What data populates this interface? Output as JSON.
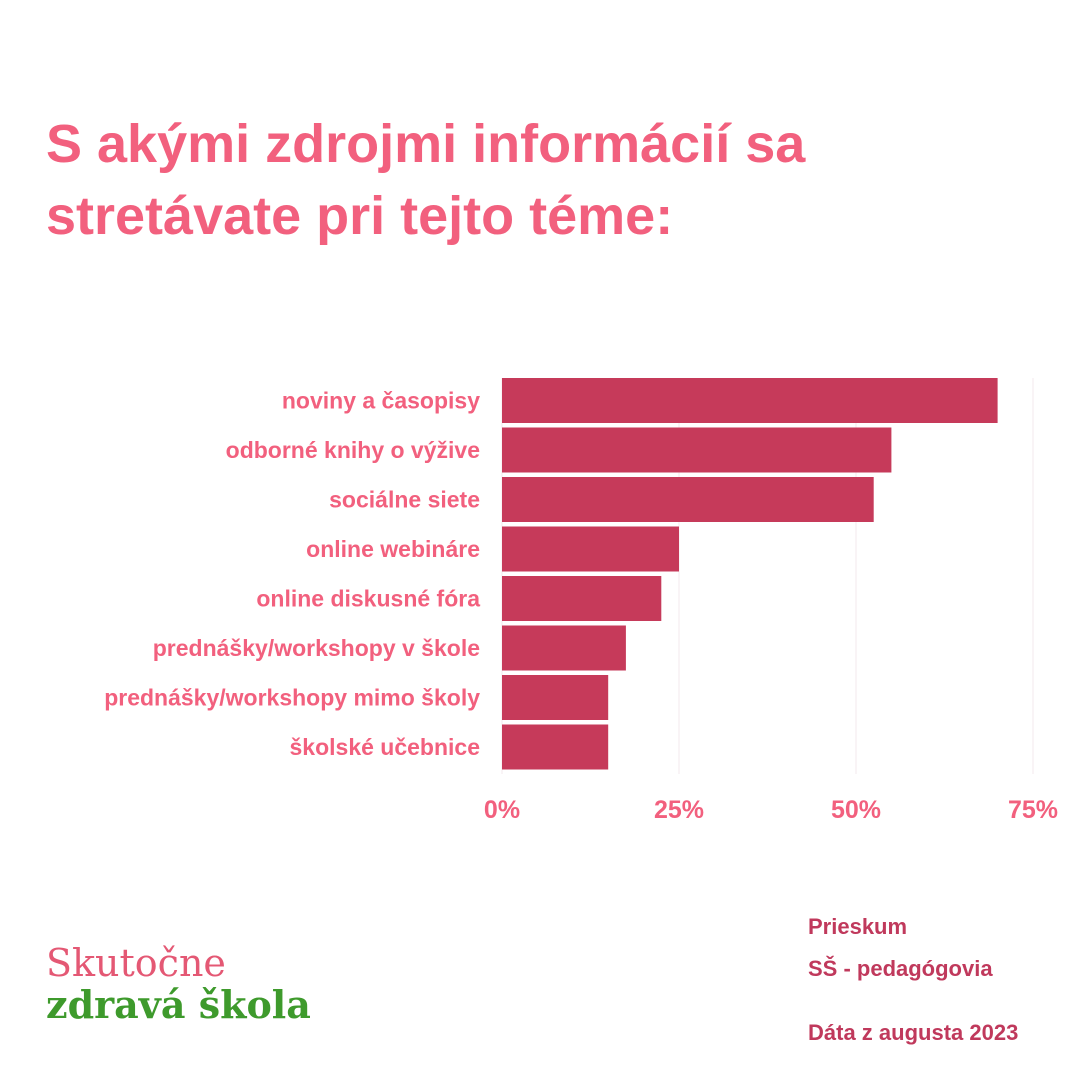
{
  "title": {
    "line1": "S akými zdrojmi informácií sa",
    "line2": "stretávate pri tejto téme:"
  },
  "chart_data": {
    "type": "bar",
    "orientation": "horizontal",
    "categories": [
      "noviny a časopisy",
      "odborné knihy o výžive",
      "sociálne siete",
      "online webináre",
      "online diskusné fóra",
      "prednášky/workshopy v škole",
      "prednášky/workshopy mimo školy",
      "školské učebnice"
    ],
    "values": [
      70,
      55,
      52.5,
      25,
      22.5,
      17.5,
      15,
      15
    ],
    "unit": "%",
    "xlim": [
      0,
      75
    ],
    "xticks": [
      0,
      25,
      50,
      75
    ],
    "xtick_labels": [
      "0%",
      "25%",
      "50%",
      "75%"
    ],
    "grid": true,
    "bar_color": "#c63a5a",
    "label_color": "#f2607e"
  },
  "logo": {
    "line1": "Skutočne",
    "line2": "zdravá škola"
  },
  "meta": {
    "survey": "Prieskum",
    "group": "SŠ - pedagógovia",
    "date": "Dáta z augusta 2023"
  },
  "colors": {
    "title": "#f2607e",
    "logo_pink": "#e45874",
    "logo_green": "#3e9a2c",
    "meta": "#c0395c"
  }
}
